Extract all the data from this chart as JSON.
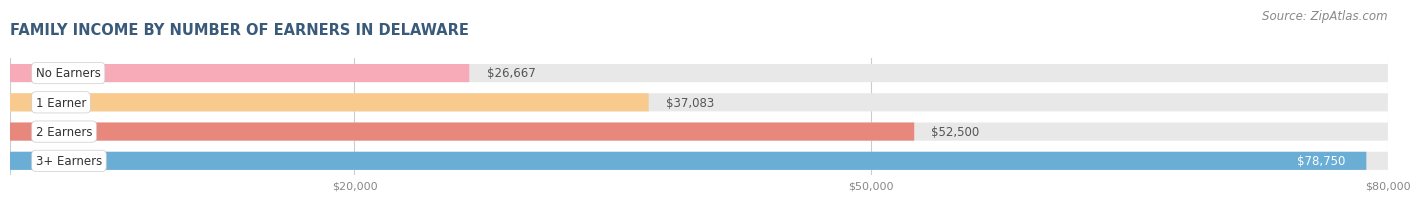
{
  "title": "FAMILY INCOME BY NUMBER OF EARNERS IN DELAWARE",
  "source": "Source: ZipAtlas.com",
  "categories": [
    "No Earners",
    "1 Earner",
    "2 Earners",
    "3+ Earners"
  ],
  "values": [
    26667,
    37083,
    52500,
    78750
  ],
  "bar_colors": [
    "#f7abb9",
    "#f9ca8e",
    "#e8877c",
    "#6aaed6"
  ],
  "bar_bg_color": "#e8e8e8",
  "background_color": "#ffffff",
  "xlim_min": 0,
  "xlim_max": 80000,
  "xticks": [
    20000,
    50000,
    80000
  ],
  "xtick_labels": [
    "$20,000",
    "$50,000",
    "$80,000"
  ],
  "title_color": "#3a5a7a",
  "title_fontsize": 10.5,
  "source_fontsize": 8.5,
  "bar_height": 0.62,
  "value_inside_threshold": 70000
}
